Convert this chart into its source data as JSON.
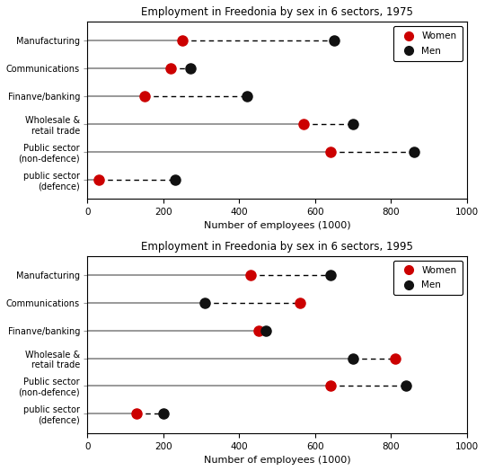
{
  "chart1": {
    "title": "Employment in Freedonia by sex in 6 sectors, 1975",
    "categories": [
      "Manufacturing",
      "Communications",
      "Finanve/banking",
      "Wholesale &\nretail trade",
      "Public sector\n(non-defence)",
      "public sector\n(defence)"
    ],
    "women": [
      250,
      220,
      150,
      570,
      640,
      30
    ],
    "men": [
      650,
      270,
      420,
      700,
      860,
      230
    ]
  },
  "chart2": {
    "title": "Employment in Freedonia by sex in 6 sectors, 1995",
    "categories": [
      "Manufacturing",
      "Communications",
      "Finanve/banking",
      "Wholesale &\nretail trade",
      "Public sector\n(non-defence)",
      "public sector\n(defence)"
    ],
    "women": [
      430,
      560,
      450,
      810,
      640,
      130
    ],
    "men": [
      640,
      310,
      470,
      700,
      840,
      200
    ]
  },
  "xlabel": "Number of employees (1000)",
  "xlim": [
    0,
    1000
  ],
  "xticks": [
    0,
    200,
    400,
    600,
    800,
    1000
  ],
  "women_color": "#cc0000",
  "men_color": "#111111",
  "marker_size": 8,
  "line_color": "#888888",
  "bg_color": "#ffffff"
}
